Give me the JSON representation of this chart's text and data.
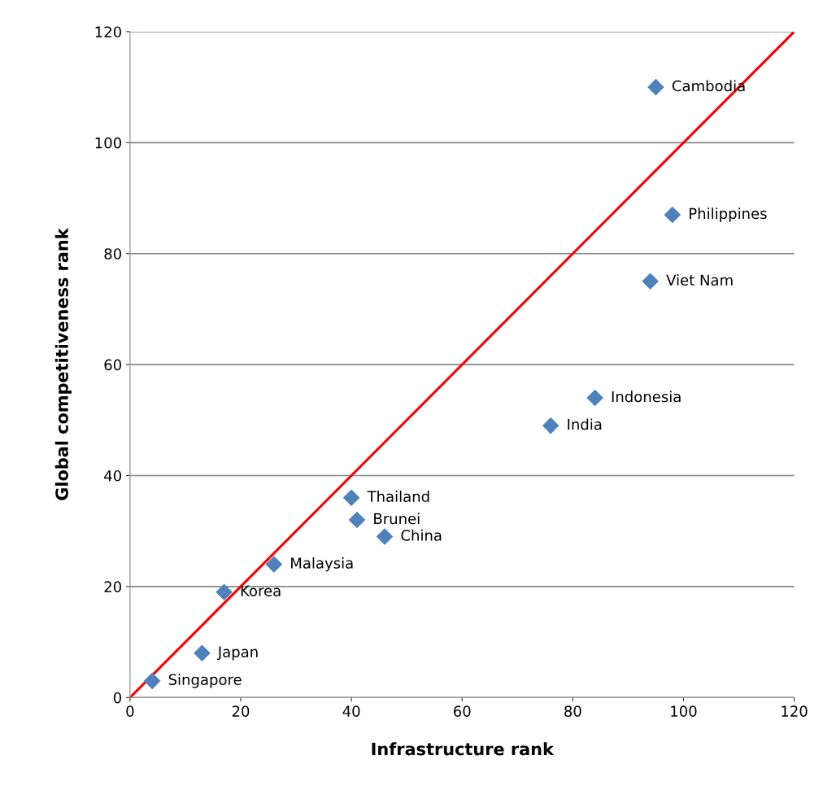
{
  "chart_data": {
    "type": "scatter",
    "xlabel": "Infrastructure rank",
    "ylabel": "Global competitiveness rank",
    "xlim": [
      0,
      120
    ],
    "ylim": [
      0,
      120
    ],
    "xticks": [
      0,
      20,
      40,
      60,
      80,
      100,
      120
    ],
    "yticks": [
      0,
      20,
      40,
      60,
      80,
      100,
      120
    ],
    "grid": "y",
    "marker": "diamond",
    "series": [
      {
        "color": "#4f81bd",
        "x": [
          95,
          98,
          94,
          84,
          76,
          40,
          41,
          46,
          26,
          17,
          13,
          4
        ],
        "values": [
          110,
          87,
          75,
          54,
          49,
          36,
          32,
          29,
          24,
          19,
          8,
          3
        ]
      },
      {
        "type": "line",
        "color": "#ff0000",
        "marker": "none",
        "line_style": "solid",
        "x": [
          0,
          120
        ],
        "values": [
          0,
          120
        ]
      }
    ],
    "annotations": [
      {
        "text": "Cambodia",
        "x": 95,
        "y": 110
      },
      {
        "text": "Philippines",
        "x": 98,
        "y": 87
      },
      {
        "text": "Viet Nam",
        "x": 94,
        "y": 75
      },
      {
        "text": "Indonesia",
        "x": 84,
        "y": 54
      },
      {
        "text": "India",
        "x": 76,
        "y": 49
      },
      {
        "text": "Thailand",
        "x": 40,
        "y": 36
      },
      {
        "text": "Brunei",
        "x": 41,
        "y": 32
      },
      {
        "text": "China",
        "x": 46,
        "y": 29
      },
      {
        "text": "Malaysia",
        "x": 26,
        "y": 24
      },
      {
        "text": "Korea",
        "x": 17,
        "y": 19
      },
      {
        "text": "Japan",
        "x": 13,
        "y": 8
      },
      {
        "text": "Singapore",
        "x": 4,
        "y": 3
      }
    ]
  }
}
